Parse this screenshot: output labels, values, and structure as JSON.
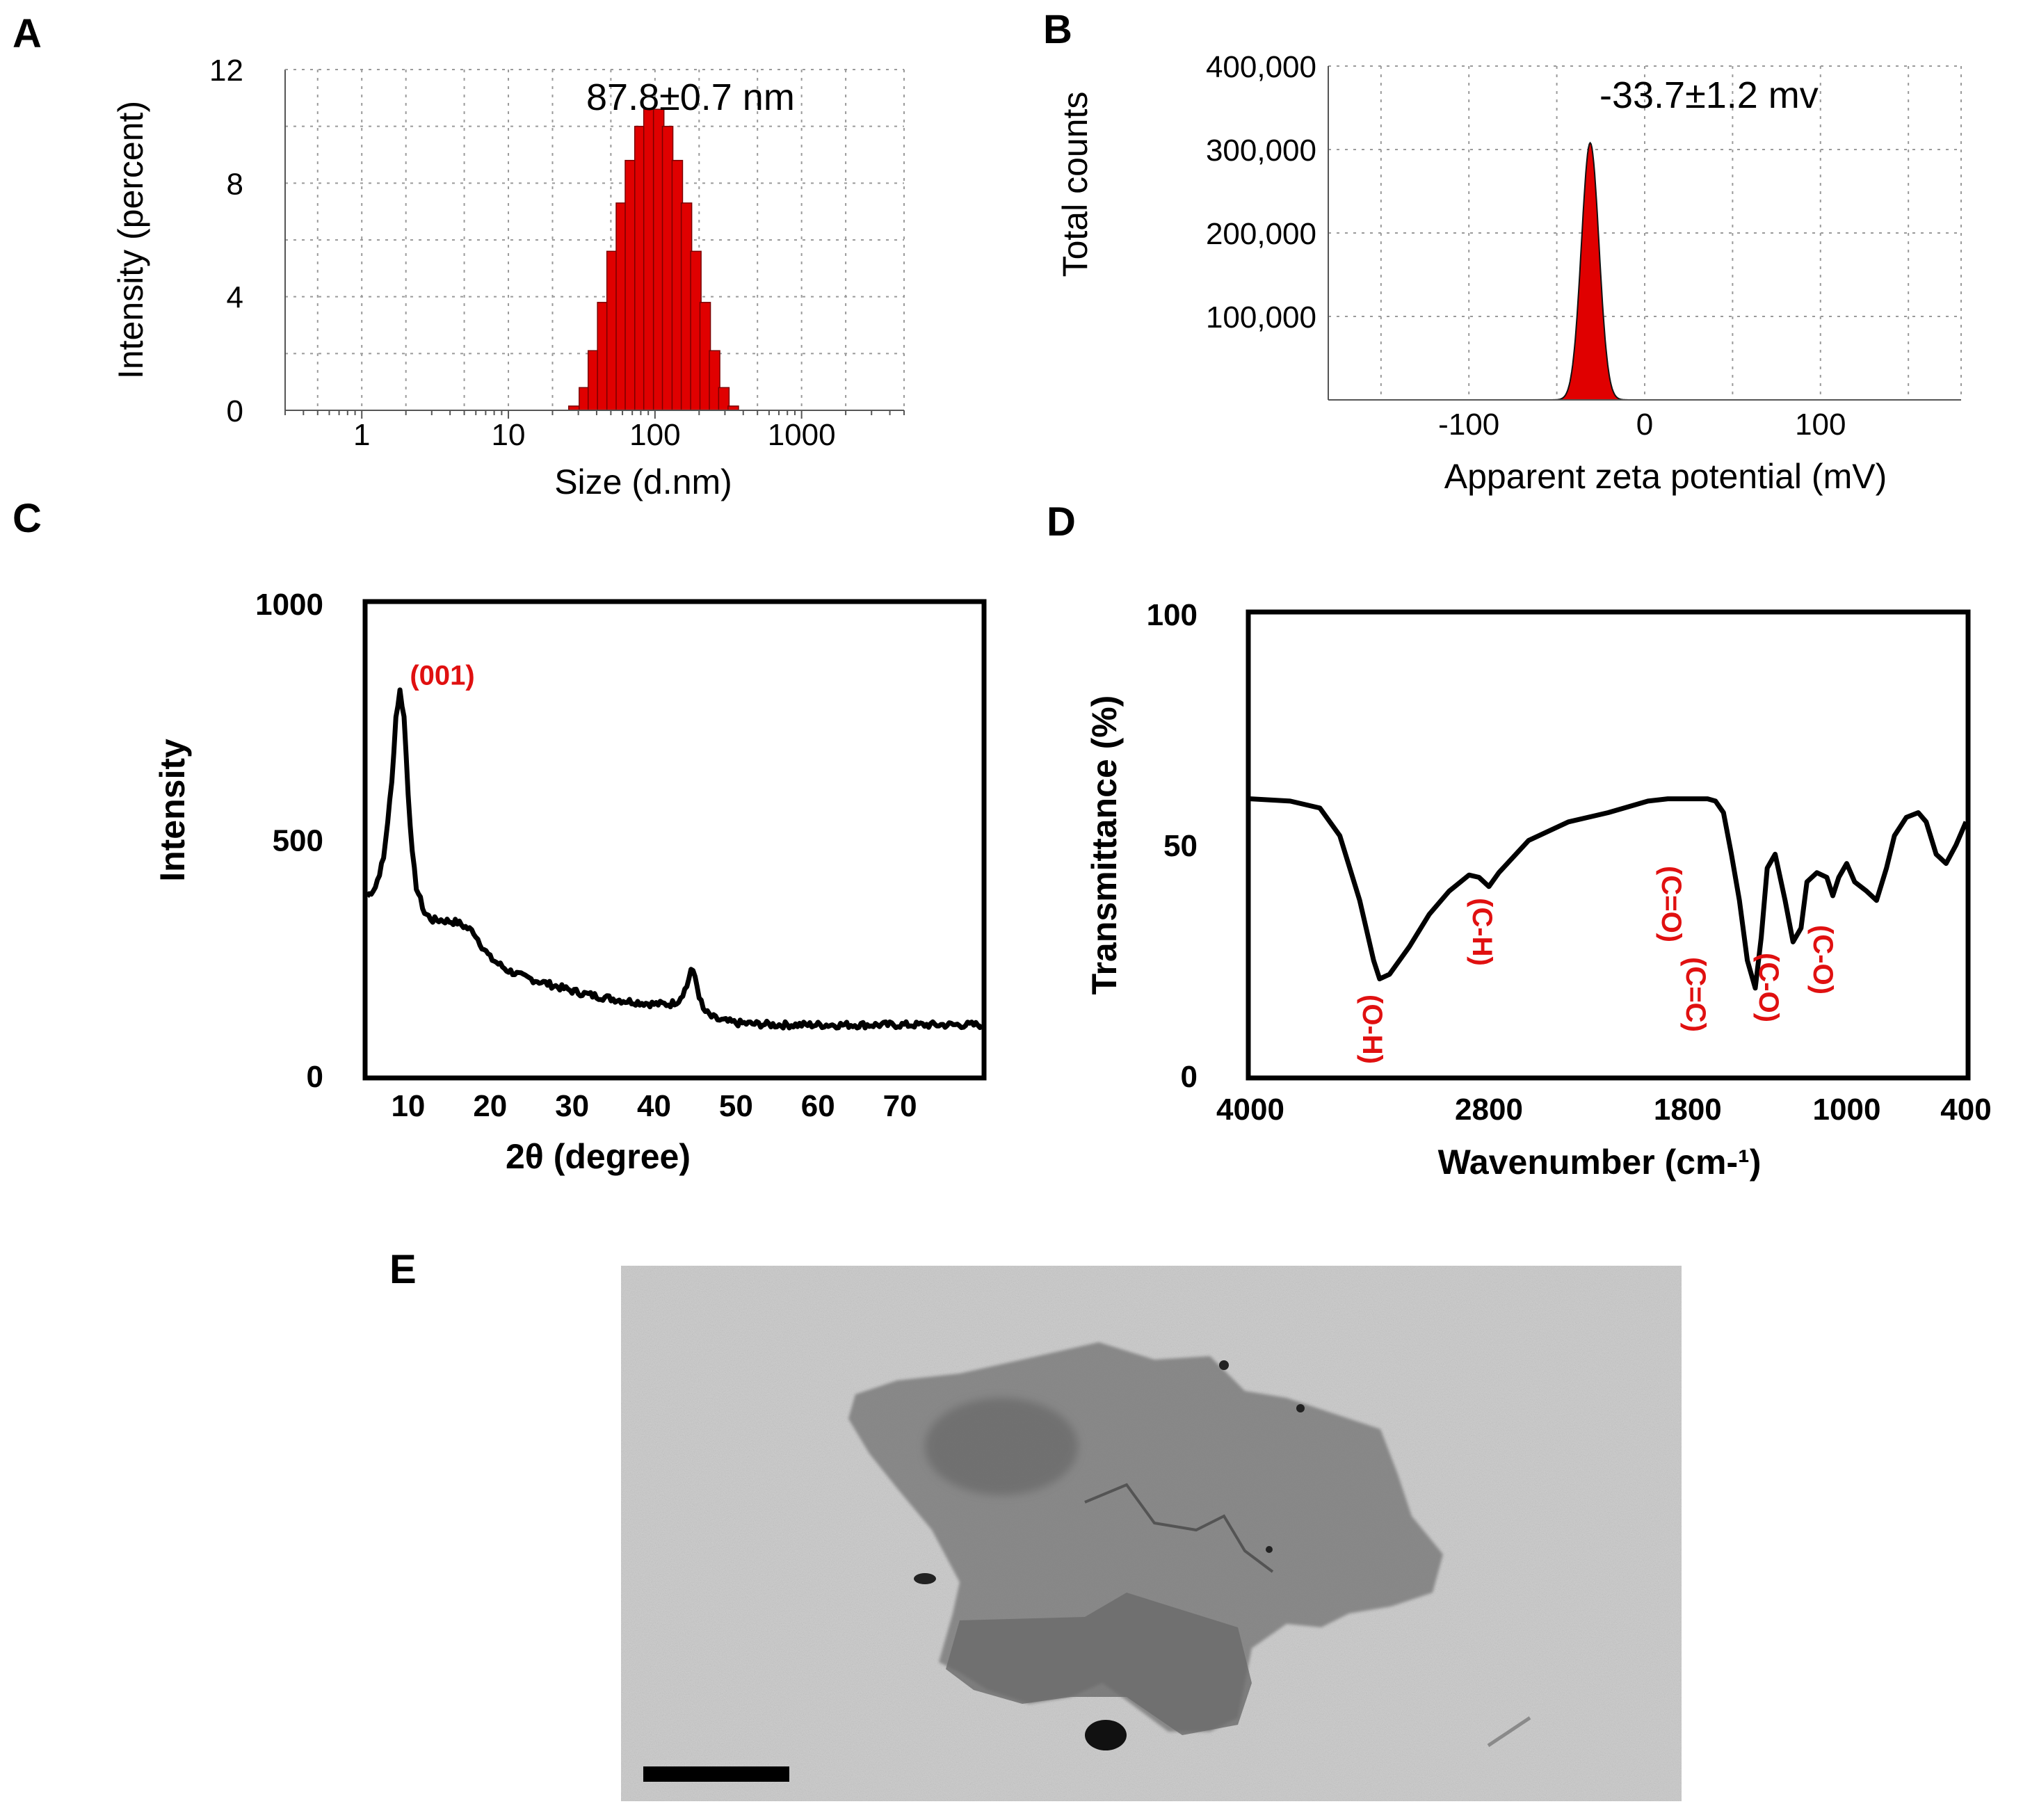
{
  "panels": {
    "A": "A",
    "B": "B",
    "C": "C",
    "D": "D",
    "E": "E"
  },
  "chart_data": [
    {
      "panel": "A",
      "type": "bar",
      "title": "",
      "annotation": "87.8±0.7 nm",
      "xlabel": "Size (d.nm)",
      "ylabel": "Intensity (percent)",
      "xscale": "log",
      "xlim": [
        0.3,
        5000
      ],
      "ylim": [
        0,
        12
      ],
      "xticks": [
        {
          "v": 1,
          "label": "1"
        },
        {
          "v": 10,
          "label": "10"
        },
        {
          "v": 100,
          "label": "100"
        },
        {
          "v": 1000,
          "label": "1000"
        }
      ],
      "yticks": [
        {
          "v": 0,
          "label": "0"
        },
        {
          "v": 4,
          "label": "4"
        },
        {
          "v": 8,
          "label": "8"
        },
        {
          "v": 12,
          "label": "12"
        }
      ],
      "bins": [
        28,
        33,
        38,
        44,
        51,
        59,
        68,
        79,
        91,
        106,
        122,
        142,
        164,
        190,
        220,
        255,
        295,
        342
      ],
      "values": [
        0.15,
        0.8,
        2.1,
        3.8,
        5.6,
        7.3,
        8.8,
        10.0,
        10.6,
        10.6,
        10.0,
        8.8,
        7.3,
        5.6,
        3.8,
        2.1,
        0.8,
        0.15
      ],
      "bar_color": "#e00000",
      "grid": true
    },
    {
      "panel": "B",
      "type": "area",
      "title": "",
      "annotation": "-33.7±1.2 mv",
      "xlabel": "Apparent zeta potential (mV)",
      "ylabel": "Total counts",
      "xlim": [
        -180,
        180
      ],
      "ylim": [
        0,
        400000
      ],
      "xticks": [
        {
          "v": -100,
          "label": "-100"
        },
        {
          "v": 0,
          "label": "0"
        },
        {
          "v": 100,
          "label": "100"
        }
      ],
      "yticks": [
        {
          "v": 100000,
          "label": "100,000"
        },
        {
          "v": 200000,
          "label": "200,000"
        },
        {
          "v": 300000,
          "label": "300,000"
        },
        {
          "v": 400000,
          "label": "400,000"
        }
      ],
      "peak_center": -31,
      "peak_height": 308000,
      "peak_sigma": 5,
      "fill_color": "#e00000",
      "grid": true
    },
    {
      "panel": "C",
      "type": "line",
      "title": "",
      "xlabel": "2θ (degree)",
      "ylabel": "Intensity",
      "xlim": [
        5,
        80
      ],
      "ylim": [
        0,
        1000
      ],
      "xticks": [
        {
          "v": 10,
          "label": "10"
        },
        {
          "v": 20,
          "label": "20"
        },
        {
          "v": 30,
          "label": "30"
        },
        {
          "v": 40,
          "label": "40"
        },
        {
          "v": 50,
          "label": "50"
        },
        {
          "v": 60,
          "label": "60"
        },
        {
          "v": 70,
          "label": "70"
        }
      ],
      "yticks": [
        {
          "v": 0,
          "label": "0"
        },
        {
          "v": 500,
          "label": "500"
        },
        {
          "v": 1000,
          "label": "1000"
        }
      ],
      "peak_label": "(001)",
      "peak_label_x": 9.5,
      "x": [
        5,
        6,
        7,
        8,
        8.5,
        9,
        9.5,
        10,
        10.5,
        11,
        12,
        13,
        14,
        16,
        18,
        19,
        20,
        22,
        24,
        26,
        28,
        30,
        32,
        34,
        36,
        38,
        40,
        42,
        43,
        44,
        44.5,
        45,
        45.5,
        46,
        47,
        48,
        50,
        52,
        55,
        60,
        65,
        70,
        75,
        80
      ],
      "y": [
        380,
        400,
        460,
        620,
        760,
        815,
        760,
        600,
        470,
        400,
        345,
        330,
        330,
        325,
        305,
        275,
        250,
        225,
        210,
        200,
        190,
        180,
        172,
        166,
        160,
        156,
        152,
        152,
        160,
        190,
        225,
        210,
        170,
        140,
        125,
        118,
        112,
        110,
        108,
        108,
        108,
        108,
        108,
        108
      ],
      "grid": false
    },
    {
      "panel": "D",
      "type": "line",
      "title": "",
      "xlabel": "Wavenumber  (cm-¹)",
      "ylabel": "Transmittance (%)",
      "xlim": [
        4000,
        400
      ],
      "ylim": [
        0,
        100
      ],
      "xticks": [
        {
          "v": 4000,
          "label": "4000"
        },
        {
          "v": 2800,
          "label": "2800"
        },
        {
          "v": 1800,
          "label": "1800"
        },
        {
          "v": 1000,
          "label": "1000"
        },
        {
          "v": 400,
          "label": "400"
        }
      ],
      "yticks": [
        {
          "v": 0,
          "label": "0"
        },
        {
          "v": 50,
          "label": "50"
        },
        {
          "v": 100,
          "label": "100"
        }
      ],
      "x": [
        4000,
        3800,
        3650,
        3550,
        3450,
        3380,
        3350,
        3300,
        3200,
        3100,
        3000,
        2900,
        2850,
        2800,
        2750,
        2600,
        2400,
        2200,
        2000,
        1900,
        1800,
        1700,
        1660,
        1620,
        1580,
        1540,
        1500,
        1460,
        1430,
        1400,
        1360,
        1310,
        1270,
        1230,
        1200,
        1150,
        1100,
        1070,
        1040,
        1000,
        960,
        900,
        850,
        800,
        760,
        700,
        640,
        600,
        550,
        500,
        450,
        400
      ],
      "y": [
        60,
        59.5,
        58,
        52,
        38,
        25,
        21,
        22,
        28,
        35,
        40,
        43.5,
        43,
        41,
        44,
        51,
        55,
        57,
        59.5,
        60,
        60,
        60,
        59.5,
        57,
        48,
        38,
        25,
        19,
        30,
        45,
        48,
        38,
        29,
        32,
        42,
        44,
        43,
        39,
        43,
        46,
        42,
        40,
        38,
        45,
        52,
        56,
        57,
        55,
        48,
        46,
        50,
        55
      ],
      "band_labels": [
        {
          "text": "(O-H)",
          "x": 3350
        },
        {
          "text": "(C-H)",
          "x": 2800
        },
        {
          "text": "(C=O)",
          "x": 1650
        },
        {
          "text": "(C=C)",
          "x": 1560
        },
        {
          "text": "(C-O)",
          "x": 1270
        },
        {
          "text": "(C-O)",
          "x": 1050
        }
      ],
      "grid": false
    }
  ],
  "image_e": {
    "description_alt": "TEM micrograph of nanosheet"
  }
}
